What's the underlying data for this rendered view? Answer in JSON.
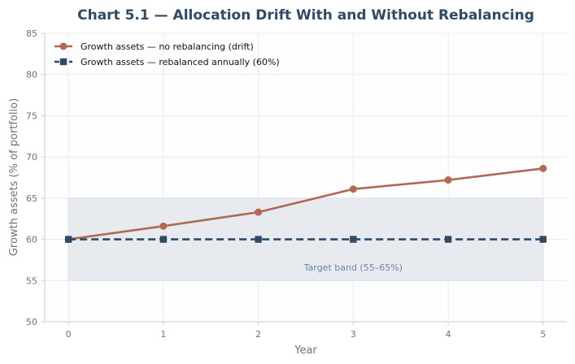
{
  "chart_data": {
    "type": "line",
    "title": "Chart 5.1 — Allocation Drift With and Without Rebalancing",
    "xlabel": "Year",
    "ylabel": "Growth assets (% of portfolio)",
    "x": [
      0,
      1,
      2,
      3,
      4,
      5
    ],
    "xlim": [
      -0.25,
      5.25
    ],
    "ylim": [
      50,
      85
    ],
    "xticks": [
      "0",
      "1",
      "2",
      "3",
      "4",
      "5"
    ],
    "yticks": [
      "50",
      "55",
      "60",
      "65",
      "70",
      "75",
      "80",
      "85"
    ],
    "grid": true,
    "legend_position": "top-left",
    "series": [
      {
        "name": "Growth assets — no rebalancing (drift)",
        "values": [
          60.0,
          61.6,
          63.3,
          66.1,
          67.2,
          68.6
        ],
        "color": "#b06a54",
        "marker": "circle",
        "line_style": "solid"
      },
      {
        "name": "Growth assets — rebalanced annually (60%)",
        "values": [
          60,
          60,
          60,
          60,
          60,
          60
        ],
        "color": "#2e4a66",
        "marker": "square",
        "line_style": "dashed"
      }
    ],
    "band": {
      "label": "Target band (55–65%)",
      "y_range": [
        55,
        65
      ],
      "x_range": [
        0,
        5
      ],
      "color": "#e7ebf0"
    }
  }
}
